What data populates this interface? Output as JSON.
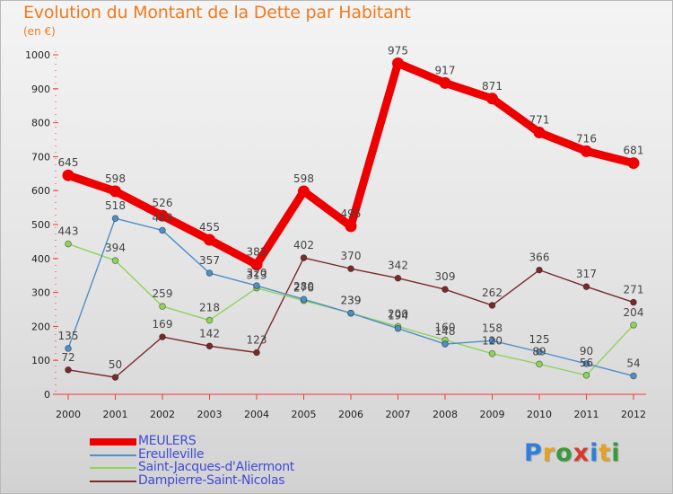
{
  "header": {
    "title": "Evolution du Montant de la Dette par Habitant",
    "subtitle": "(en €)"
  },
  "logo": {
    "text": "Proxiti",
    "colors": [
      "#2f7fd8",
      "#e8a020",
      "#3a9a3a",
      "#d83a2a",
      "#2f7fd8",
      "#e8a020",
      "#3a9a3a"
    ]
  },
  "chart_data": {
    "type": "line",
    "title": "Evolution du Montant de la Dette par Habitant",
    "subtitle": "(en €)",
    "xlabel": "",
    "ylabel": "",
    "x": [
      "2000",
      "2001",
      "2002",
      "2003",
      "2004",
      "2005",
      "2006",
      "2007",
      "2008",
      "2009",
      "2010",
      "2011",
      "2012"
    ],
    "ylim": [
      0,
      1000
    ],
    "yticks": [
      "0",
      "100",
      "200",
      "300",
      "400",
      "500",
      "600",
      "700",
      "800",
      "900",
      "1000"
    ],
    "grid": false,
    "legend_position": "bottom-left",
    "series": [
      {
        "name": "MEULERS",
        "color": "#ee0000",
        "values": [
          645,
          598,
          526,
          455,
          382,
          598,
          495,
          975,
          917,
          871,
          771,
          716,
          681
        ],
        "labels": [
          "645",
          "598",
          "526",
          "455",
          "382",
          "598",
          "495",
          "975",
          "917",
          "871",
          "771",
          "716",
          "681"
        ]
      },
      {
        "name": "Ereulleville",
        "color": "#4f8fc6",
        "values": [
          135,
          518,
          483,
          357,
          320,
          280,
          239,
          194,
          148,
          158,
          125,
          90,
          54
        ],
        "labels": [
          "135",
          "518",
          "483",
          "357",
          "320",
          "280",
          "239",
          "194",
          "148",
          "158",
          "125",
          "90",
          "54"
        ]
      },
      {
        "name": "Saint-Jacques-d'Aliermont",
        "color": "#8ed45a",
        "values": [
          443,
          394,
          259,
          218,
          313,
          276,
          239,
          200,
          160,
          120,
          89,
          56,
          204
        ],
        "labels": [
          "443",
          "394",
          "259",
          "218",
          "313",
          "276",
          "239",
          "200",
          "160",
          "120",
          "89",
          "56",
          "204"
        ]
      },
      {
        "name": "Dampierre-Saint-Nicolas",
        "color": "#7a2a2a",
        "values": [
          72,
          50,
          169,
          142,
          123,
          402,
          370,
          342,
          309,
          262,
          366,
          317,
          271
        ],
        "labels": [
          "72",
          "50",
          "169",
          "142",
          "123",
          "402",
          "370",
          "342",
          "309",
          "262",
          "366",
          "317",
          "271"
        ]
      }
    ]
  }
}
